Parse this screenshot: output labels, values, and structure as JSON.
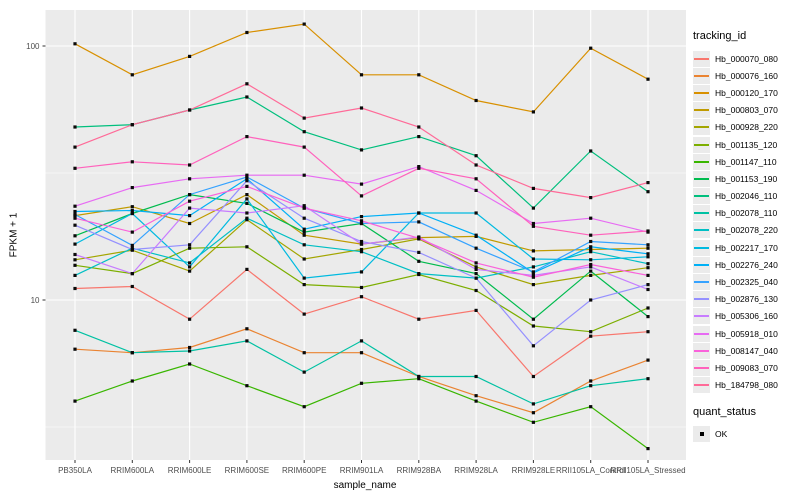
{
  "chart_data": {
    "type": "line",
    "title": "",
    "xlabel": "sample_name",
    "ylabel": "FPKM + 1",
    "y_scale": "log10",
    "ylim": [
      2.34,
      138.6
    ],
    "y_major_ticks": [
      100,
      10
    ],
    "y_minor_gridlines": [
      31.62,
      3.162
    ],
    "grid": true,
    "legend_position": "right",
    "point_marker": "black-square",
    "categories": [
      "PB350LA",
      "RRIM600LA",
      "RRIM600LE",
      "RRIM600SE",
      "RRIM600PE",
      "RRIM901LA",
      "RRIM928BA",
      "RRIM928LA",
      "RRIM928LE",
      "RRII105LA_Control",
      "RRII105LA_Stressed"
    ],
    "series": [
      {
        "name": "Hb_000070_080",
        "color": "#F8766D",
        "values": [
          11.1,
          11.3,
          8.4,
          13.2,
          8.8,
          10.3,
          8.4,
          9.1,
          5.0,
          7.2,
          7.5
        ]
      },
      {
        "name": "Hb_000076_160",
        "color": "#EA8331",
        "values": [
          6.4,
          6.2,
          6.5,
          7.7,
          6.2,
          6.2,
          5.0,
          4.2,
          3.6,
          4.8,
          5.8
        ]
      },
      {
        "name": "Hb_000120_170",
        "color": "#D89000",
        "values": [
          102,
          77,
          91,
          113,
          122,
          77,
          77,
          61,
          55,
          98,
          74
        ]
      },
      {
        "name": "Hb_000803_070",
        "color": "#C09B00",
        "values": [
          21.5,
          23.3,
          20,
          26,
          18,
          16.6,
          17.6,
          17.8,
          15.6,
          15.8,
          16
        ]
      },
      {
        "name": "Hb_000928_220",
        "color": "#A3A500",
        "values": [
          14.4,
          15.7,
          13,
          20.7,
          14.5,
          15.8,
          17.4,
          13.5,
          11.5,
          12.5,
          13.4
        ]
      },
      {
        "name": "Hb_001135_120",
        "color": "#7CAE00",
        "values": [
          13.7,
          12.7,
          16,
          16.2,
          11.5,
          11.2,
          12.6,
          10.9,
          7.9,
          7.5,
          9.3
        ]
      },
      {
        "name": "Hb_001147_110",
        "color": "#39B600",
        "values": [
          4.0,
          4.8,
          5.6,
          4.6,
          3.8,
          4.7,
          4.9,
          4.0,
          3.3,
          3.8,
          2.6
        ]
      },
      {
        "name": "Hb_001153_190",
        "color": "#00BB4E",
        "values": [
          17.9,
          21.9,
          26,
          24,
          18.5,
          20,
          14.2,
          12.7,
          8.4,
          13,
          8.6
        ]
      },
      {
        "name": "Hb_002046_110",
        "color": "#00BF7D",
        "values": [
          48,
          49,
          56,
          63,
          46,
          39,
          44,
          37,
          23,
          38.6,
          26.7
        ]
      },
      {
        "name": "Hb_002078_110",
        "color": "#00C1A3",
        "values": [
          7.6,
          6.2,
          6.3,
          6.9,
          5.2,
          6.9,
          5.0,
          5.0,
          3.9,
          4.6,
          4.9
        ]
      },
      {
        "name": "Hb_002078_220",
        "color": "#00BFC4",
        "values": [
          12.5,
          16,
          14,
          21,
          16.5,
          15.5,
          12.7,
          12.2,
          13.5,
          15.5,
          13.9
        ]
      },
      {
        "name": "Hb_002217_170",
        "color": "#00BAE0",
        "values": [
          16.6,
          21.9,
          13.5,
          25,
          12.2,
          12.9,
          22,
          22,
          14.5,
          14.4,
          14.8
        ]
      },
      {
        "name": "Hb_002276_240",
        "color": "#00B0F6",
        "values": [
          22.3,
          22.5,
          21.5,
          30,
          19,
          21.3,
          22,
          18,
          12.8,
          16.2,
          15.2
        ]
      },
      {
        "name": "Hb_002325_040",
        "color": "#35A2FF",
        "values": [
          21.7,
          16.4,
          26,
          30.5,
          23,
          20,
          20.3,
          16,
          12.9,
          17,
          16.5
        ]
      },
      {
        "name": "Hb_002876_130",
        "color": "#9590FF",
        "values": [
          19.7,
          15.8,
          16.5,
          29.5,
          21,
          17,
          15.4,
          12.2,
          6.6,
          10,
          11.5
        ]
      },
      {
        "name": "Hb_005306_160",
        "color": "#C77CFF",
        "values": [
          15.1,
          12.7,
          23,
          22,
          23.5,
          16.6,
          17.7,
          13.2,
          12.5,
          13.5,
          11
        ]
      },
      {
        "name": "Hb_005918_010",
        "color": "#E76BF3",
        "values": [
          23.4,
          27.7,
          30,
          31,
          31,
          28.6,
          33.5,
          27,
          20,
          21,
          18.5
        ]
      },
      {
        "name": "Hb_008147_040",
        "color": "#FA62DB",
        "values": [
          21,
          18.5,
          24.5,
          28,
          23,
          20.5,
          17.5,
          14,
          12.3,
          13.8,
          12.5
        ]
      },
      {
        "name": "Hb_009083_070",
        "color": "#FF62BC",
        "values": [
          33,
          35,
          34,
          44,
          40,
          25.7,
          33,
          30,
          19.5,
          18,
          18.7
        ]
      },
      {
        "name": "Hb_184798_080",
        "color": "#FF6A98",
        "values": [
          40,
          49,
          56,
          71,
          52,
          57,
          48,
          34,
          27.5,
          25.3,
          29
        ]
      }
    ]
  },
  "axes": {
    "x_title": "sample_name",
    "y_title": "FPKM + 1",
    "y_tick_labels": [
      "100",
      "10"
    ]
  },
  "legend": {
    "tracking_title": "tracking_id",
    "quant_title": "quant_status",
    "quant_items": [
      {
        "label": "OK",
        "marker": "black-square"
      }
    ]
  },
  "colors": {
    "panel_bg": "#EBEBEB",
    "gridline": "#FFFFFF",
    "tick_text": "#4D4D4D",
    "tick_mark": "#333333",
    "point": "#0a0a0a"
  }
}
